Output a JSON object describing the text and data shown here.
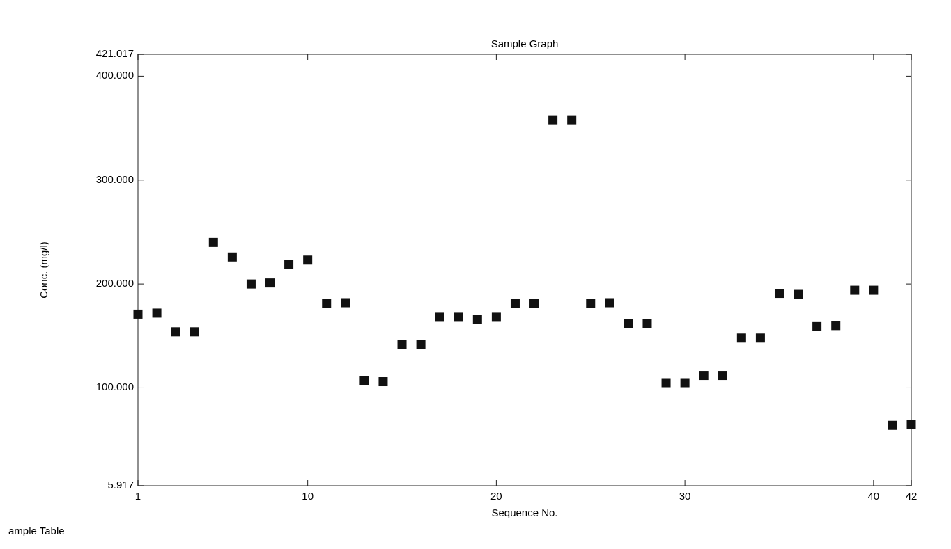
{
  "chart_data": {
    "type": "scatter",
    "title": "Sample Graph",
    "xlabel": "Sequence No.",
    "ylabel": "Conc. (mg/l)",
    "marker": "square",
    "grid": false,
    "x": [
      1,
      2,
      3,
      4,
      5,
      6,
      7,
      8,
      9,
      10,
      11,
      12,
      13,
      14,
      15,
      16,
      17,
      18,
      19,
      20,
      21,
      22,
      23,
      24,
      25,
      26,
      27,
      28,
      29,
      30,
      31,
      32,
      33,
      34,
      35,
      36,
      37,
      38,
      39,
      40,
      41,
      42
    ],
    "series": [
      {
        "color": "#111111",
        "values": [
          171,
          172,
          154,
          154,
          240,
          226,
          200,
          201,
          219,
          223,
          181,
          182,
          107,
          106,
          142,
          142,
          168,
          168,
          166,
          168,
          181,
          181,
          358,
          358,
          181,
          182,
          162,
          162,
          105,
          105,
          112,
          112,
          148,
          148,
          191,
          190,
          159,
          160,
          194,
          194,
          64,
          65
        ]
      }
    ],
    "xlim": [
      1,
      42
    ],
    "xticks": [
      1,
      10,
      20,
      30,
      40,
      42
    ],
    "ylim": [
      5.917,
      421.017
    ],
    "yticks": [
      {
        "value": 5.917,
        "label": "5.917"
      },
      {
        "value": 100,
        "label": "100.000"
      },
      {
        "value": 200,
        "label": "200.000"
      },
      {
        "value": 300,
        "label": "300.000"
      },
      {
        "value": 400,
        "label": "400.000"
      },
      {
        "value": 421.017,
        "label": "421.017"
      }
    ],
    "annotations": [
      "ample Table"
    ]
  }
}
